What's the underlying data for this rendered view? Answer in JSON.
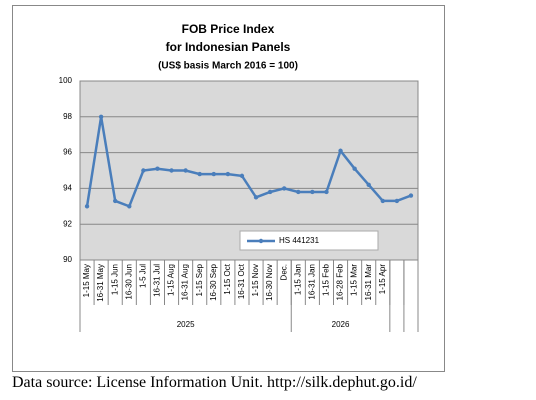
{
  "chart_data": {
    "type": "line",
    "title": [
      "FOB Price Index",
      "for Indonesian Panels"
    ],
    "subtitle": "(US$ basis March 2016 = 100)",
    "categories": [
      "1-15 May",
      "16-31 May",
      "1-15 Jun",
      "16-30 Jun",
      "1-5 Jul",
      "16-31 Jul",
      "1-15 Aug",
      "16-31 Aug",
      "1-15 Sep",
      "16-30 Sep",
      "1-15 Oct",
      "16-31 Oct",
      "1-15 Nov",
      "16-30 Nov",
      "Dec.",
      "1-15 Jan",
      "16-31 Jan",
      "1-15 Feb",
      "16-28 Feb",
      "1-15 Mar",
      "16-31 Mar",
      "1-15 Apr",
      null,
      null
    ],
    "x_groups": [
      {
        "label": "2025",
        "count": 15
      },
      {
        "label": "2026",
        "count": 7
      }
    ],
    "series": [
      {
        "name": "HS 441231",
        "color": "#4a7ebb",
        "values": [
          93.0,
          98.0,
          93.3,
          93.0,
          95.0,
          95.1,
          95.0,
          95.0,
          94.8,
          94.8,
          94.8,
          94.7,
          93.5,
          93.8,
          94.0,
          93.8,
          93.8,
          93.8,
          96.1,
          95.1,
          94.2,
          93.3,
          93.3,
          93.6
        ]
      }
    ],
    "ylim": [
      90,
      100
    ],
    "yticks": [
      90,
      92,
      94,
      96,
      98,
      100
    ],
    "grid": true
  },
  "source": "Data source: License Information Unit. http://silk.dephut.go.id/"
}
